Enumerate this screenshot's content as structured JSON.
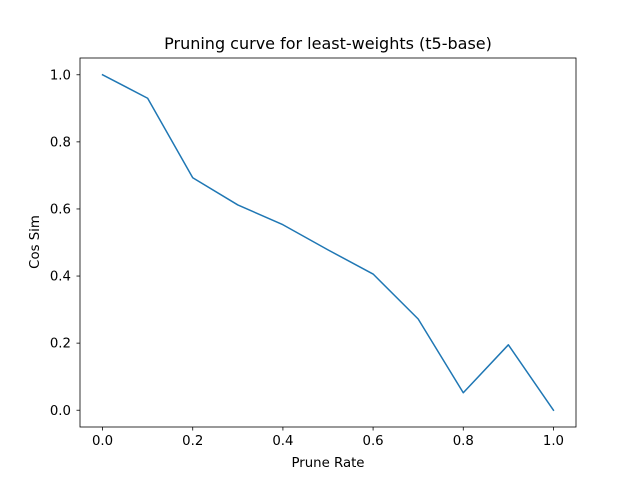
{
  "chart_data": {
    "type": "line",
    "title": "Pruning curve for least-weights (t5-base)",
    "xlabel": "Prune Rate",
    "ylabel": "Cos Sim",
    "xlim": [
      -0.05,
      1.05
    ],
    "ylim": [
      -0.05,
      1.05
    ],
    "xticks": [
      0.0,
      0.2,
      0.4,
      0.6,
      0.8,
      1.0
    ],
    "xtick_labels": [
      "0.0",
      "0.2",
      "0.4",
      "0.6",
      "0.8",
      "1.0"
    ],
    "yticks": [
      0.0,
      0.2,
      0.4,
      0.6,
      0.8,
      1.0
    ],
    "ytick_labels": [
      "0.0",
      "0.2",
      "0.4",
      "0.6",
      "0.8",
      "1.0"
    ],
    "grid": false,
    "series": [
      {
        "color": "#1f77b4",
        "x": [
          0.0,
          0.1,
          0.2,
          0.3,
          0.4,
          0.5,
          0.6,
          0.7,
          0.8,
          0.9,
          1.0
        ],
        "y": [
          1.0,
          0.93,
          0.693,
          0.612,
          0.553,
          0.478,
          0.406,
          0.272,
          0.052,
          0.195,
          0.0
        ]
      }
    ]
  }
}
